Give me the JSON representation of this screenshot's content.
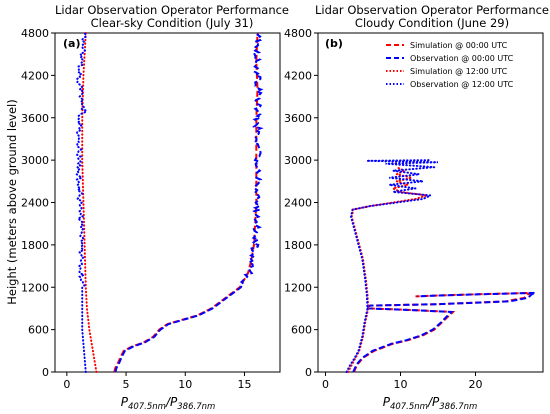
{
  "figure": {
    "ylabel": "Height (meters above ground level)",
    "xlabel": {
      "p1": "P",
      "s1": "407.5nm",
      "slash": "/",
      "p2": "P",
      "s2": "386.7nm"
    }
  },
  "chart_data": [
    {
      "type": "line",
      "title": "Lidar Observation Operator Performance",
      "subtitle": "Clear-sky Condition (July 31)",
      "panel_label": "(a)",
      "xlabel": "P407.5nm/P386.7nm",
      "ylabel": "Height (meters above ground level)",
      "xlim": [
        -1,
        18
      ],
      "ylim": [
        0,
        4800
      ],
      "x_ticks": [
        0,
        5,
        10,
        15
      ],
      "y_ticks": [
        0,
        600,
        1200,
        1800,
        2400,
        3000,
        3600,
        4200,
        4800
      ],
      "grid": false,
      "legend": false,
      "colors": {
        "sim": "#ff0000",
        "obs": "#0000ff"
      },
      "series": [
        {
          "style": "dashed",
          "color": "#ff0000",
          "points": [
            [
              4.0,
              0
            ],
            [
              4.1,
              60
            ],
            [
              4.3,
              120
            ],
            [
              4.5,
              200
            ],
            [
              4.8,
              300
            ],
            [
              5.5,
              360
            ],
            [
              6.5,
              420
            ],
            [
              7.3,
              500
            ],
            [
              7.8,
              600
            ],
            [
              8.5,
              680
            ],
            [
              11.0,
              800
            ],
            [
              12.2,
              900
            ],
            [
              13.0,
              1000
            ],
            [
              13.8,
              1100
            ],
            [
              14.6,
              1200
            ],
            [
              15.3,
              1400
            ],
            [
              15.6,
              1600
            ],
            [
              15.8,
              1800
            ],
            [
              15.9,
              2100
            ],
            [
              16.0,
              2400
            ],
            [
              16.0,
              3000
            ],
            [
              16.0,
              3600
            ],
            [
              16.1,
              4000
            ],
            [
              16.0,
              4400
            ],
            [
              16.1,
              4800
            ]
          ]
        },
        {
          "style": "dashed",
          "color": "#0000ff",
          "noise": 0.28,
          "points": [
            [
              4.1,
              0
            ],
            [
              4.2,
              60
            ],
            [
              4.4,
              120
            ],
            [
              4.6,
              200
            ],
            [
              4.9,
              300
            ],
            [
              5.6,
              360
            ],
            [
              6.6,
              420
            ],
            [
              7.4,
              500
            ],
            [
              7.9,
              600
            ],
            [
              8.6,
              680
            ],
            [
              11.1,
              800
            ],
            [
              12.3,
              900
            ],
            [
              13.1,
              1000
            ],
            [
              13.9,
              1100
            ],
            [
              14.7,
              1200
            ],
            [
              15.4,
              1400
            ],
            [
              15.7,
              1600
            ],
            [
              15.9,
              1800
            ],
            [
              16.0,
              2100
            ],
            [
              16.1,
              2400
            ],
            [
              16.1,
              3000
            ],
            [
              16.1,
              3600
            ],
            [
              16.2,
              4000
            ],
            [
              16.1,
              4400
            ],
            [
              16.2,
              4800
            ]
          ]
        },
        {
          "style": "dotted",
          "color": "#ff0000",
          "points": [
            [
              2.5,
              0
            ],
            [
              2.3,
              200
            ],
            [
              2.1,
              400
            ],
            [
              1.9,
              600
            ],
            [
              1.7,
              900
            ],
            [
              1.6,
              1200
            ],
            [
              1.5,
              1800
            ],
            [
              1.4,
              2400
            ],
            [
              1.3,
              3000
            ],
            [
              1.3,
              3600
            ],
            [
              1.4,
              4200
            ],
            [
              1.6,
              4800
            ]
          ]
        },
        {
          "style": "dotted",
          "color": "#0000ff",
          "noise": 0.22,
          "points": [
            [
              1.6,
              0
            ],
            [
              1.5,
              200
            ],
            [
              1.4,
              400
            ],
            [
              1.3,
              600
            ],
            [
              1.3,
              900
            ],
            [
              1.3,
              1200
            ],
            [
              1.2,
              1800
            ],
            [
              1.1,
              2400
            ],
            [
              1.0,
              3000
            ],
            [
              1.1,
              3600
            ],
            [
              1.5,
              3700
            ],
            [
              1.2,
              3900
            ],
            [
              1.0,
              4200
            ],
            [
              1.3,
              4500
            ],
            [
              1.5,
              4800
            ]
          ]
        }
      ]
    },
    {
      "type": "line",
      "title": "Lidar Observation Operator Performance",
      "subtitle": "Cloudy Condition (June 29)",
      "panel_label": "(b)",
      "xlabel": "P407.5nm/P386.7nm",
      "ylabel": "",
      "xlim": [
        -1,
        29
      ],
      "ylim": [
        0,
        4800
      ],
      "x_ticks": [
        0,
        10,
        20
      ],
      "y_ticks": [
        0,
        600,
        1200,
        1800,
        2400,
        3000,
        3600,
        4200,
        4800
      ],
      "grid": false,
      "legend": true,
      "legend_position": "top-right",
      "legend_entries": [
        {
          "label": "Simulation @ 00:00 UTC",
          "color": "#ff0000",
          "style": "dashed"
        },
        {
          "label": "Observation @ 00:00 UTC",
          "color": "#0000ff",
          "style": "dashed"
        },
        {
          "label": "Simulation @ 12:00 UTC",
          "color": "#ff0000",
          "style": "dotted"
        },
        {
          "label": "Observation @ 12:00 UTC",
          "color": "#0000ff",
          "style": "dotted"
        }
      ],
      "series": [
        {
          "name": "Simulation @ 00:00 UTC",
          "style": "dashed",
          "color": "#ff0000",
          "points": [
            [
              3.8,
              0
            ],
            [
              4.2,
              100
            ],
            [
              5.0,
              200
            ],
            [
              6.5,
              300
            ],
            [
              9.0,
              400
            ],
            [
              11.0,
              450
            ],
            [
              13.0,
              520
            ],
            [
              14.5,
              600
            ],
            [
              15.5,
              700
            ],
            [
              16.5,
              800
            ],
            [
              17.0,
              850
            ],
            [
              11.0,
              880
            ],
            [
              5.8,
              900
            ],
            [
              5.5,
              920
            ],
            [
              6.0,
              940
            ],
            [
              15.0,
              960
            ],
            [
              24.0,
              1000
            ],
            [
              26.5,
              1050
            ],
            [
              27.0,
              1100
            ],
            [
              27.5,
              1120
            ],
            [
              20.0,
              1100
            ],
            [
              14.0,
              1080
            ],
            [
              12.0,
              1070
            ]
          ]
        },
        {
          "name": "Observation @ 00:00 UTC",
          "style": "dashed",
          "color": "#0000ff",
          "points": [
            [
              3.7,
              0
            ],
            [
              4.1,
              100
            ],
            [
              4.9,
              200
            ],
            [
              6.3,
              300
            ],
            [
              8.8,
              400
            ],
            [
              10.8,
              450
            ],
            [
              12.8,
              520
            ],
            [
              14.3,
              600
            ],
            [
              15.4,
              700
            ],
            [
              16.3,
              800
            ],
            [
              16.8,
              850
            ],
            [
              10.8,
              880
            ],
            [
              5.7,
              900
            ],
            [
              5.4,
              920
            ],
            [
              5.9,
              940
            ],
            [
              15.0,
              960
            ],
            [
              24.5,
              1000
            ],
            [
              27.0,
              1050
            ],
            [
              27.5,
              1100
            ],
            [
              28.0,
              1120
            ],
            [
              20.5,
              1100
            ],
            [
              14.2,
              1080
            ],
            [
              12.2,
              1070
            ]
          ]
        },
        {
          "name": "Simulation @ 12:00 UTC",
          "style": "dotted",
          "color": "#ff0000",
          "points": [
            [
              3.0,
              0
            ],
            [
              3.5,
              100
            ],
            [
              4.0,
              200
            ],
            [
              4.5,
              300
            ],
            [
              5.0,
              500
            ],
            [
              5.3,
              700
            ],
            [
              5.7,
              900
            ],
            [
              5.6,
              1100
            ],
            [
              5.4,
              1300
            ],
            [
              5.0,
              1600
            ],
            [
              4.5,
              1800
            ],
            [
              4.0,
              2000
            ],
            [
              3.5,
              2200
            ],
            [
              3.7,
              2300
            ],
            [
              6.0,
              2350
            ],
            [
              9.0,
              2400
            ],
            [
              12.0,
              2450
            ],
            [
              13.5,
              2500
            ],
            [
              10.0,
              2550
            ],
            [
              9.0,
              2600
            ],
            [
              11.0,
              2650
            ],
            [
              9.5,
              2700
            ],
            [
              11.5,
              2750
            ],
            [
              9.5,
              2800
            ],
            [
              10.5,
              2850
            ],
            [
              9.5,
              2900
            ]
          ]
        },
        {
          "name": "Observation @ 12:00 UTC",
          "style": "dotted",
          "color": "#0000ff",
          "points": [
            [
              2.8,
              0
            ],
            [
              3.3,
              100
            ],
            [
              3.9,
              200
            ],
            [
              4.4,
              300
            ],
            [
              4.9,
              500
            ],
            [
              5.2,
              700
            ],
            [
              5.6,
              900
            ],
            [
              5.5,
              1100
            ],
            [
              5.3,
              1300
            ],
            [
              4.9,
              1600
            ],
            [
              4.4,
              1800
            ],
            [
              3.9,
              2000
            ],
            [
              3.4,
              2200
            ],
            [
              3.6,
              2300
            ],
            [
              6.0,
              2350
            ],
            [
              9.5,
              2400
            ],
            [
              13.0,
              2450
            ],
            [
              14.0,
              2500
            ],
            [
              9.0,
              2550
            ],
            [
              12.0,
              2600
            ],
            [
              8.5,
              2650
            ],
            [
              13.0,
              2700
            ],
            [
              8.5,
              2750
            ],
            [
              12.5,
              2800
            ],
            [
              9.0,
              2850
            ],
            [
              14.5,
              2900
            ],
            [
              8.0,
              2950
            ],
            [
              15.0,
              2970
            ],
            [
              5.5,
              2990
            ],
            [
              14.0,
              3000
            ]
          ]
        }
      ]
    }
  ]
}
